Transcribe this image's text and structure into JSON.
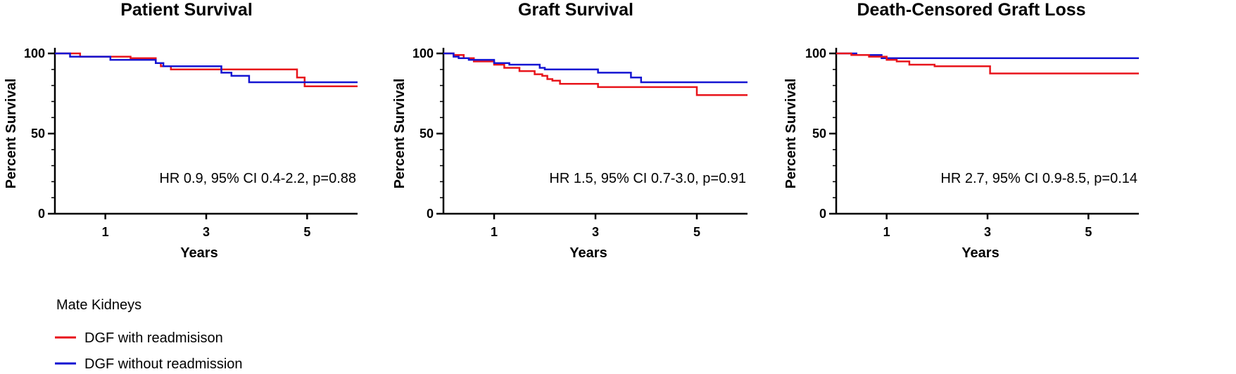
{
  "legend": {
    "title": "Mate  Kidneys",
    "entries": [
      {
        "label": "DGF with readmisison",
        "color": "#e8141b"
      },
      {
        "label": "DGF without readmission",
        "color": "#1414d2"
      }
    ]
  },
  "chart_data": [
    {
      "type": "line",
      "title": "Patient Survival",
      "xlabel": "Years",
      "ylabel": "Percent Survival",
      "xlim": [
        0,
        6
      ],
      "ylim": [
        0,
        100
      ],
      "xticks": [
        1,
        3,
        5
      ],
      "yticks": [
        0,
        50,
        100
      ],
      "annotation": "HR 0.9, 95% CI 0.4-2.2, p=0.88",
      "series": [
        {
          "name": "DGF with readmisison",
          "color": "#e8141b",
          "x": [
            0,
            0.5,
            0.5,
            1.5,
            1.5,
            2.0,
            2.0,
            2.1,
            2.1,
            2.3,
            2.3,
            4.8,
            4.8,
            4.95,
            4.95,
            6.0
          ],
          "y": [
            100,
            100,
            98,
            98,
            97,
            97,
            94,
            94,
            92,
            92,
            90,
            90,
            85,
            85,
            79.5,
            79.5
          ]
        },
        {
          "name": "DGF without readmission",
          "color": "#1414d2",
          "x": [
            0,
            0.3,
            0.3,
            1.1,
            1.1,
            2.0,
            2.0,
            2.15,
            2.15,
            3.3,
            3.3,
            3.5,
            3.5,
            3.85,
            3.85,
            6.0
          ],
          "y": [
            100,
            100,
            98,
            98,
            96,
            96,
            94,
            94,
            92,
            92,
            88,
            88,
            86,
            86,
            82,
            82
          ]
        }
      ]
    },
    {
      "type": "line",
      "title": "Graft Survival",
      "xlabel": "Years",
      "ylabel": "Percent Survival",
      "xlim": [
        0,
        6
      ],
      "ylim": [
        0,
        100
      ],
      "xticks": [
        1,
        3,
        5
      ],
      "yticks": [
        0,
        50,
        100
      ],
      "annotation": "HR 1.5, 95% CI 0.7-3.0, p=0.91",
      "series": [
        {
          "name": "DGF with readmisison",
          "color": "#e8141b",
          "x": [
            0,
            0.2,
            0.2,
            0.4,
            0.4,
            0.6,
            0.6,
            1.0,
            1.0,
            1.2,
            1.2,
            1.5,
            1.5,
            1.8,
            1.8,
            1.95,
            1.95,
            2.05,
            2.05,
            2.15,
            2.15,
            2.3,
            2.3,
            3.05,
            3.05,
            5.0,
            5.0,
            6.0
          ],
          "y": [
            100,
            100,
            99,
            99,
            97,
            97,
            95,
            95,
            93,
            93,
            91,
            91,
            89,
            89,
            87,
            87,
            86,
            86,
            84,
            84,
            83,
            83,
            81,
            81,
            79,
            79,
            74,
            74
          ]
        },
        {
          "name": "DGF without readmission",
          "color": "#1414d2",
          "x": [
            0,
            0.2,
            0.2,
            0.3,
            0.3,
            0.5,
            0.5,
            1.0,
            1.0,
            1.3,
            1.3,
            1.9,
            1.9,
            2.0,
            2.0,
            3.05,
            3.05,
            3.7,
            3.7,
            3.9,
            3.9,
            6.0
          ],
          "y": [
            100,
            100,
            98,
            98,
            97,
            97,
            96,
            96,
            94,
            94,
            93,
            93,
            91,
            91,
            90,
            90,
            88,
            88,
            85,
            85,
            82,
            82
          ]
        }
      ]
    },
    {
      "type": "line",
      "title": "Death-Censored Graft Loss",
      "xlabel": "Years",
      "ylabel": "Percent Survival",
      "xlim": [
        0,
        6
      ],
      "ylim": [
        0,
        100
      ],
      "xticks": [
        1,
        3,
        5
      ],
      "yticks": [
        0,
        50,
        100
      ],
      "annotation": "HR 2.7, 95% CI 0.9-8.5, p=0.14",
      "series": [
        {
          "name": "DGF without readmission",
          "color": "#1414d2",
          "x": [
            0,
            0.4,
            0.4,
            0.9,
            0.9,
            6.0
          ],
          "y": [
            100,
            100,
            99,
            99,
            97,
            97
          ]
        },
        {
          "name": "DGF with readmisison",
          "color": "#e8141b",
          "x": [
            0,
            0.3,
            0.3,
            0.65,
            0.65,
            1.0,
            1.0,
            1.2,
            1.2,
            1.45,
            1.45,
            1.95,
            1.95,
            3.05,
            3.05,
            6.0
          ],
          "y": [
            100,
            100,
            99,
            99,
            98,
            98,
            96,
            96,
            95,
            95,
            93,
            93,
            92,
            92,
            87.5,
            87.5
          ]
        }
      ]
    }
  ]
}
